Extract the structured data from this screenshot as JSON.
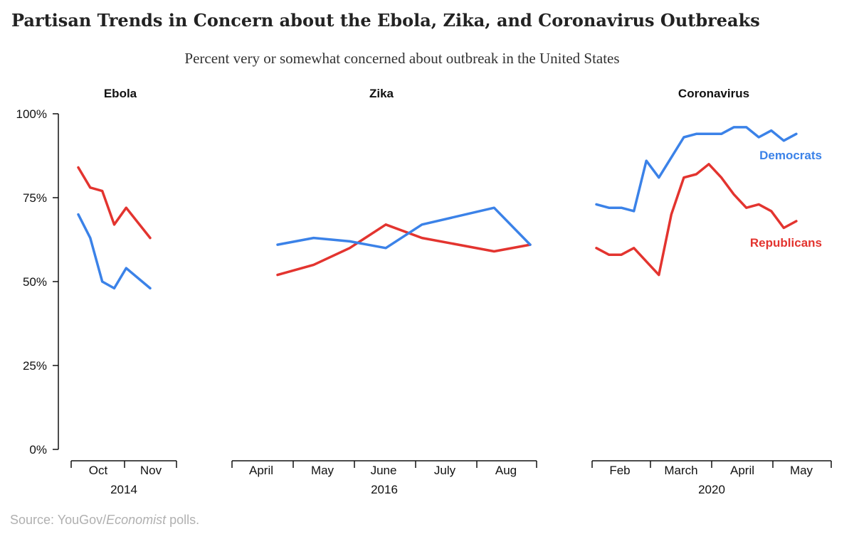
{
  "title": "Partisan Trends in Concern about the Ebola, Zika, and Coronavirus Outbreaks",
  "subtitle": "Percent very or somewhat concerned about outbreak in the United States",
  "source": {
    "prefix": "Source: YouGov/",
    "italic": "Economist",
    "suffix": " polls."
  },
  "colors": {
    "democrats": "#3b82e8",
    "republicans": "#e3342f",
    "axis": "#111111",
    "text": "#111111"
  },
  "chart_data": {
    "type": "line",
    "ylim": [
      0,
      100
    ],
    "y_ticks": [
      0,
      25,
      50,
      75,
      100
    ],
    "y_tick_labels": [
      "0%",
      "25%",
      "50%",
      "75%",
      "100%"
    ],
    "grid": false,
    "legend": "inline labels at right end of Coronavirus panel",
    "series_labels": {
      "democrats": "Democrats",
      "republicans": "Republicans"
    },
    "panels": [
      {
        "name": "Ebola",
        "year_label": "2014",
        "x_ticks": [
          "Oct",
          "Nov"
        ],
        "x": [
          1,
          2,
          3,
          4,
          5,
          6,
          7
        ],
        "series": [
          {
            "key": "republicans",
            "values": [
              84,
              78,
              77,
              67,
              72,
              null,
              63
            ]
          },
          {
            "key": "democrats",
            "values": [
              70,
              63,
              50,
              48,
              54,
              null,
              48
            ]
          }
        ]
      },
      {
        "name": "Zika",
        "year_label": "2016",
        "x_ticks": [
          "April",
          "May",
          "June",
          "July",
          "Aug"
        ],
        "x": [
          1,
          2,
          3,
          4,
          5,
          6,
          7,
          8
        ],
        "series": [
          {
            "key": "republicans",
            "values": [
              52,
              55,
              60,
              67,
              63,
              null,
              59,
              61
            ]
          },
          {
            "key": "democrats",
            "values": [
              61,
              63,
              62,
              60,
              67,
              null,
              72,
              61
            ]
          }
        ]
      },
      {
        "name": "Coronavirus",
        "year_label": "2020",
        "x_ticks": [
          "Feb",
          "March",
          "April",
          "May"
        ],
        "x": [
          1,
          2,
          3,
          4,
          5,
          6,
          7,
          8,
          9,
          10,
          11,
          12,
          13,
          14,
          15,
          16,
          17,
          18,
          19
        ],
        "series": [
          {
            "key": "democrats",
            "values": [
              73,
              72,
              72,
              71,
              86,
              81,
              87,
              93,
              94,
              94,
              94,
              96,
              96,
              93,
              95,
              92,
              94,
              null,
              null
            ]
          },
          {
            "key": "republicans",
            "values": [
              60,
              58,
              58,
              60,
              56,
              52,
              70,
              81,
              82,
              85,
              81,
              76,
              72,
              73,
              71,
              66,
              68,
              null,
              null
            ]
          }
        ]
      }
    ]
  }
}
